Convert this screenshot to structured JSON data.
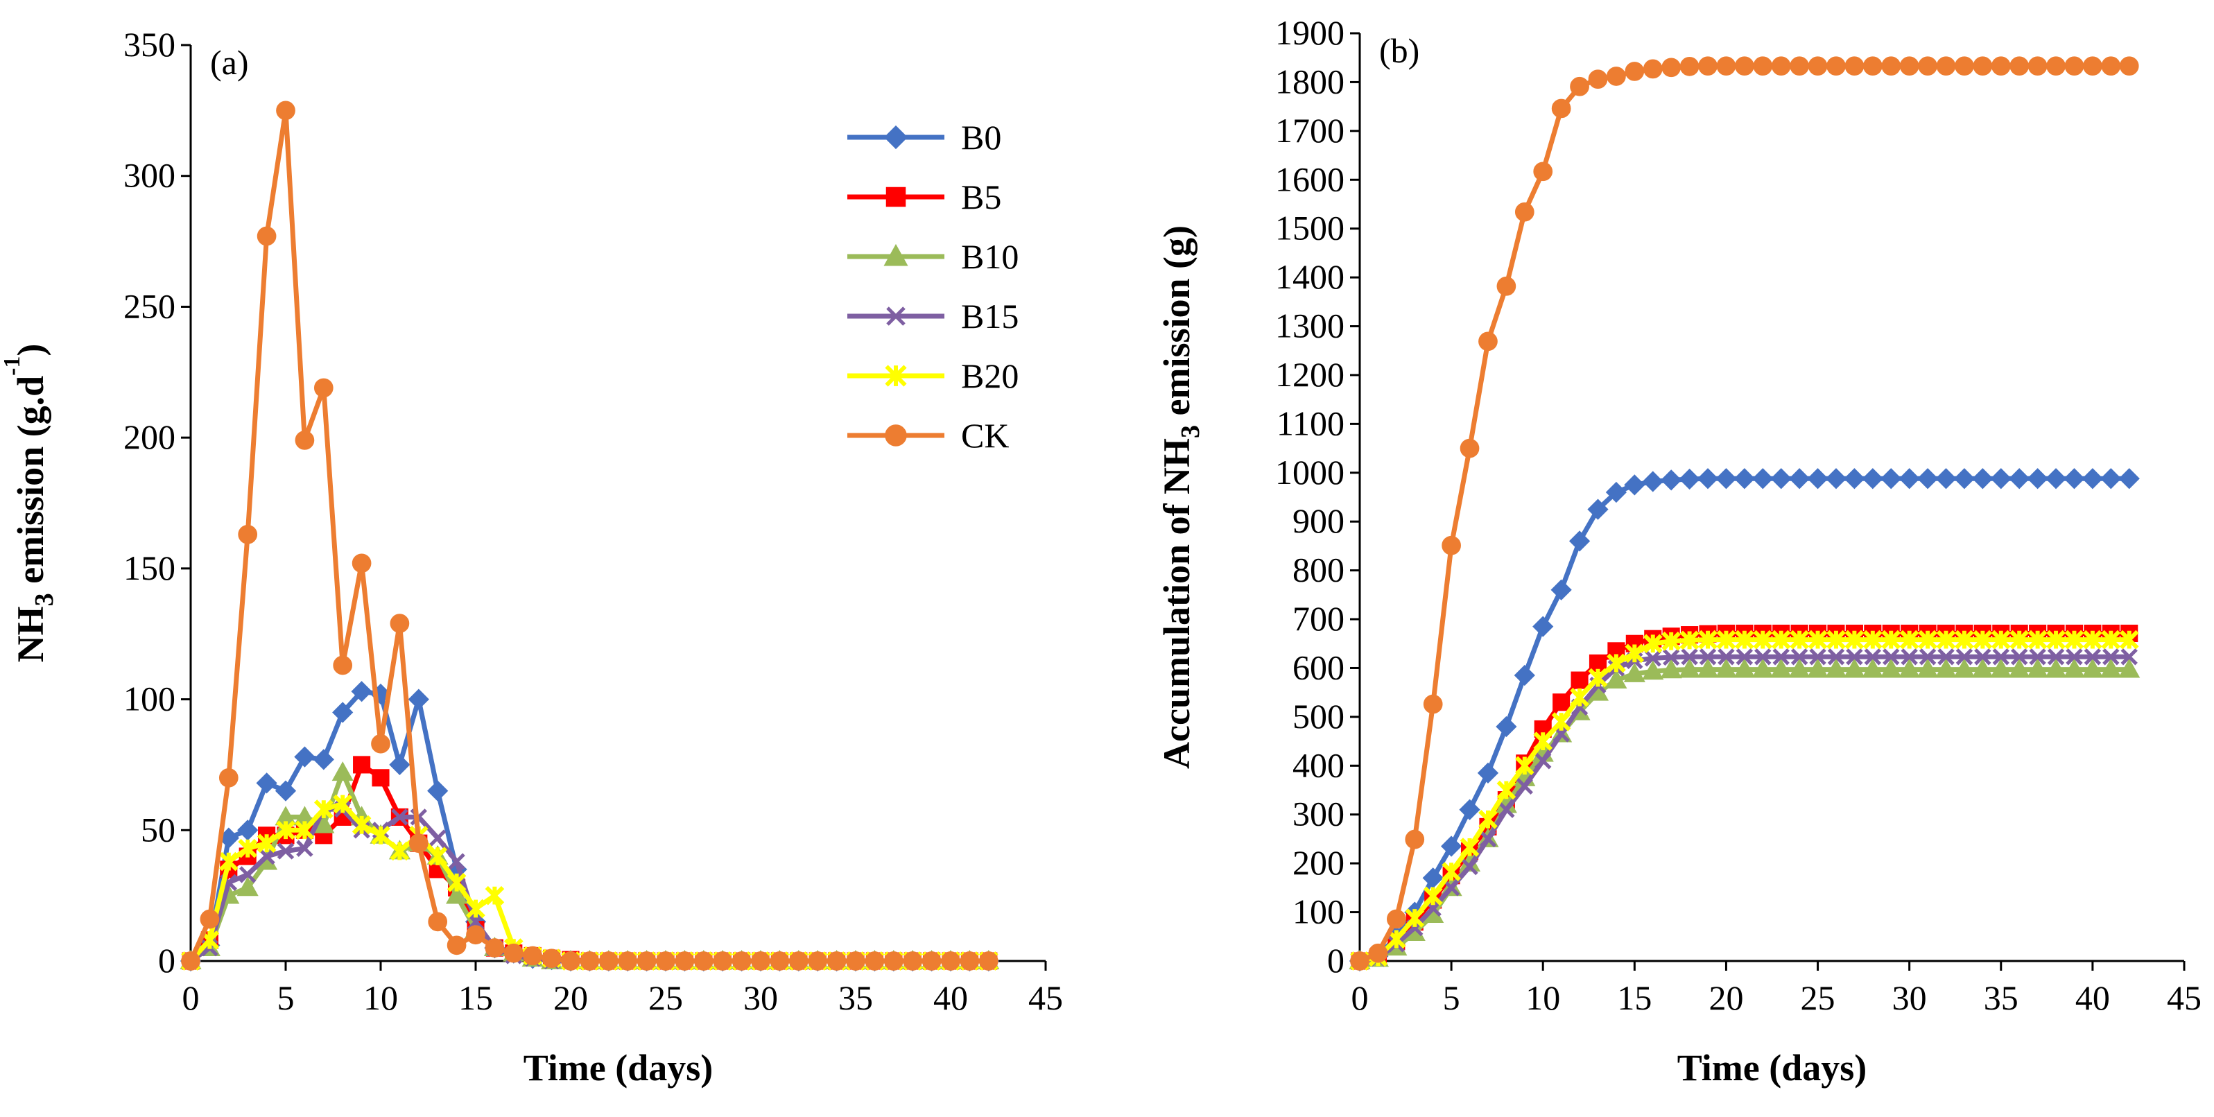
{
  "chart_data": [
    {
      "type": "line",
      "panel_label": "(a)",
      "xlabel": "Time (days)",
      "ylabel": {
        "base": "NH",
        "sub": "3",
        "rest": " emission (g.d",
        "sup": "-1",
        "end": ")"
      },
      "xlim": [
        0,
        45
      ],
      "ylim": [
        0,
        350
      ],
      "xticks": [
        0,
        5,
        10,
        15,
        20,
        25,
        30,
        35,
        40,
        45
      ],
      "yticks": [
        0,
        50,
        100,
        150,
        200,
        250,
        300,
        350
      ],
      "grid": false,
      "legend": {
        "placement": "top-right"
      },
      "x": [
        0,
        1,
        2,
        3,
        4,
        5,
        6,
        7,
        8,
        9,
        10,
        11,
        12,
        13,
        14,
        15,
        16,
        17,
        18,
        19,
        20,
        21,
        22,
        23,
        24,
        25,
        26,
        27,
        28,
        29,
        30,
        31,
        32,
        33,
        34,
        35,
        36,
        37,
        38,
        39,
        40,
        41,
        42
      ],
      "series": [
        {
          "name": "B0",
          "color": "#4472C4",
          "marker": "diamond",
          "values": [
            0,
            6,
            47,
            50,
            68,
            65,
            78,
            77,
            95,
            103,
            102,
            75,
            100,
            65,
            35,
            15,
            5,
            3,
            1,
            0.5,
            0,
            0,
            0,
            0,
            0,
            0,
            0,
            0,
            0,
            0,
            0,
            0,
            0,
            0,
            0,
            0,
            0,
            0,
            0,
            0,
            0,
            0,
            0
          ]
        },
        {
          "name": "B5",
          "color": "#FF0000",
          "marker": "square",
          "values": [
            0,
            8,
            35,
            40,
            48,
            48,
            50,
            48,
            55,
            75,
            70,
            55,
            45,
            35,
            28,
            12,
            5,
            3,
            2,
            1,
            0.5,
            0,
            0,
            0,
            0,
            0,
            0,
            0,
            0,
            0,
            0,
            0,
            0,
            0,
            0,
            0,
            0,
            0,
            0,
            0,
            0,
            0,
            0
          ]
        },
        {
          "name": "B10",
          "color": "#9BBB59",
          "marker": "triangle",
          "values": [
            0,
            5,
            25,
            28,
            38,
            55,
            55,
            52,
            72,
            55,
            48,
            42,
            45,
            40,
            25,
            12,
            5,
            3,
            1,
            0,
            0,
            0,
            0,
            0,
            0,
            0,
            0,
            0,
            0,
            0,
            0,
            0,
            0,
            0,
            0,
            0,
            0,
            0,
            0,
            0,
            0,
            0,
            0
          ]
        },
        {
          "name": "B15",
          "color": "#7E5FA2",
          "marker": "x",
          "values": [
            0,
            5,
            30,
            33,
            40,
            42,
            43,
            58,
            58,
            50,
            50,
            55,
            55,
            47,
            38,
            15,
            5,
            2,
            1,
            0,
            0,
            0,
            0,
            0,
            0,
            0,
            0,
            0,
            0,
            0,
            0,
            0,
            0,
            0,
            0,
            0,
            0,
            0,
            0,
            0,
            0,
            0,
            0
          ]
        },
        {
          "name": "B20",
          "color": "#FFFF00",
          "marker": "star",
          "values": [
            0,
            8,
            38,
            43,
            45,
            50,
            50,
            58,
            60,
            52,
            48,
            42,
            48,
            40,
            30,
            20,
            25,
            5,
            2,
            1,
            0,
            0,
            0,
            0,
            0,
            0,
            0,
            0,
            0,
            0,
            0,
            0,
            0,
            0,
            0,
            0,
            0,
            0,
            0,
            0,
            0,
            0,
            0
          ]
        },
        {
          "name": "CK",
          "color": "#ED7D31",
          "marker": "circle",
          "values": [
            0,
            16,
            70,
            163,
            277,
            325,
            199,
            219,
            113,
            152,
            83,
            129,
            45,
            15,
            6,
            10,
            5,
            3,
            2,
            1,
            0,
            0,
            0,
            0,
            0,
            0,
            0,
            0,
            0,
            0,
            0,
            0,
            0,
            0,
            0,
            0,
            0,
            0,
            0,
            0,
            0,
            0,
            0
          ]
        }
      ]
    },
    {
      "type": "line",
      "panel_label": "(b)",
      "xlabel": "Time (days)",
      "ylabel": {
        "base": "Accumulation of NH",
        "sub": "3",
        "rest": " emission (g)",
        "sup": "",
        "end": ""
      },
      "xlim": [
        0,
        45
      ],
      "ylim": [
        0,
        1900
      ],
      "xticks": [
        0,
        5,
        10,
        15,
        20,
        25,
        30,
        35,
        40,
        45
      ],
      "yticks": [
        0,
        100,
        200,
        300,
        400,
        500,
        600,
        700,
        800,
        900,
        1000,
        1100,
        1200,
        1300,
        1400,
        1500,
        1600,
        1700,
        1800,
        1900
      ],
      "grid": false,
      "x": [
        0,
        1,
        2,
        3,
        4,
        5,
        6,
        7,
        8,
        9,
        10,
        11,
        12,
        13,
        14,
        15,
        16,
        17,
        18,
        19,
        20,
        21,
        22,
        23,
        24,
        25,
        26,
        27,
        28,
        29,
        30,
        31,
        32,
        33,
        34,
        35,
        36,
        37,
        38,
        39,
        40,
        41,
        42
      ],
      "series": [
        {
          "name": "B0",
          "color": "#4472C4",
          "marker": "diamond",
          "values": [
            0,
            10,
            50,
            100,
            170,
            235,
            310,
            385,
            480,
            585,
            685,
            760,
            860,
            925,
            960,
            975,
            982,
            985,
            987,
            988,
            988,
            988,
            988,
            988,
            988,
            988,
            988,
            988,
            988,
            988,
            988,
            988,
            988,
            988,
            988,
            988,
            988,
            988,
            988,
            988,
            988,
            988,
            988
          ]
        },
        {
          "name": "B5",
          "color": "#FF0000",
          "marker": "square",
          "values": [
            0,
            8,
            40,
            80,
            125,
            175,
            225,
            275,
            330,
            405,
            475,
            530,
            575,
            610,
            635,
            650,
            660,
            665,
            668,
            670,
            671,
            671,
            671,
            671,
            671,
            671,
            671,
            671,
            671,
            671,
            671,
            671,
            671,
            671,
            671,
            671,
            671,
            671,
            671,
            671,
            671,
            671,
            671
          ]
        },
        {
          "name": "B10",
          "color": "#9BBB59",
          "marker": "triangle",
          "values": [
            0,
            5,
            28,
            58,
            95,
            150,
            200,
            250,
            320,
            375,
            425,
            465,
            510,
            550,
            575,
            588,
            593,
            596,
            597,
            597,
            597,
            597,
            597,
            597,
            597,
            597,
            597,
            597,
            597,
            597,
            597,
            597,
            597,
            597,
            597,
            597,
            597,
            597,
            597,
            597,
            597,
            597,
            597
          ]
        },
        {
          "name": "B15",
          "color": "#7E5FA2",
          "marker": "x",
          "values": [
            0,
            5,
            35,
            68,
            108,
            150,
            193,
            250,
            310,
            358,
            410,
            465,
            520,
            565,
            600,
            615,
            620,
            622,
            623,
            623,
            623,
            623,
            623,
            623,
            623,
            623,
            623,
            623,
            623,
            623,
            623,
            623,
            623,
            623,
            623,
            623,
            623,
            623,
            623,
            623,
            623,
            623,
            623
          ]
        },
        {
          "name": "B20",
          "color": "#FFFF00",
          "marker": "star",
          "values": [
            0,
            8,
            45,
            88,
            133,
            183,
            233,
            290,
            350,
            400,
            450,
            490,
            540,
            580,
            610,
            630,
            650,
            655,
            657,
            658,
            658,
            658,
            658,
            658,
            658,
            658,
            658,
            658,
            658,
            658,
            658,
            658,
            658,
            658,
            658,
            658,
            658,
            658,
            658,
            658,
            658,
            658,
            658
          ]
        },
        {
          "name": "CK",
          "color": "#ED7D31",
          "marker": "circle",
          "values": [
            0,
            16,
            86,
            249,
            526,
            851,
            1050,
            1269,
            1382,
            1534,
            1617,
            1746,
            1791,
            1806,
            1812,
            1822,
            1827,
            1830,
            1832,
            1833,
            1833,
            1833,
            1833,
            1833,
            1833,
            1833,
            1833,
            1833,
            1833,
            1833,
            1833,
            1833,
            1833,
            1833,
            1833,
            1833,
            1833,
            1833,
            1833,
            1833,
            1833,
            1833,
            1833
          ]
        }
      ]
    }
  ]
}
